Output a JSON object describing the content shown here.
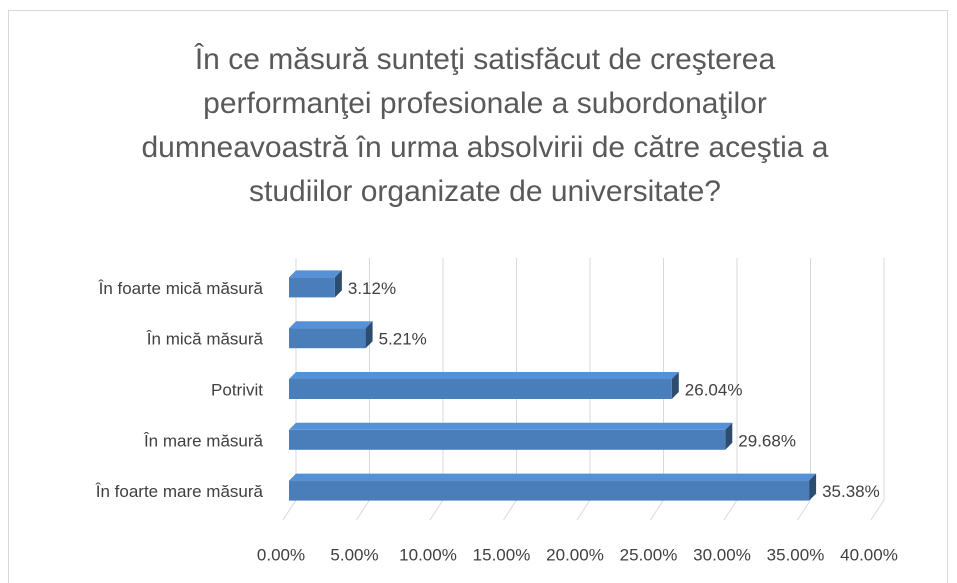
{
  "chart_data": {
    "type": "bar",
    "orientation": "horizontal",
    "title": "În ce măsură sunteţi satisfăcut de creşterea performanţei profesionale a subordonaţilor dumneavoastră în urma absolvirii de către aceştia a studiilor organizate de universitate?",
    "categories": [
      "În foarte mică măsură",
      "În mică măsură",
      "Potrivit",
      "În mare măsură",
      "În foarte mare măsură"
    ],
    "values": [
      3.12,
      5.21,
      26.04,
      29.68,
      35.38
    ],
    "value_labels": [
      "3.12%",
      "5.21%",
      "26.04%",
      "29.68%",
      "35.38%"
    ],
    "color": "#4a7ebb",
    "xlim": [
      0,
      40
    ],
    "xticks": [
      {
        "value": 0,
        "label": "0.00%"
      },
      {
        "value": 5,
        "label": "5.00%"
      },
      {
        "value": 10,
        "label": "10.00%"
      },
      {
        "value": 15,
        "label": "15.00%"
      },
      {
        "value": 20,
        "label": "20.00%"
      },
      {
        "value": 25,
        "label": "25.00%"
      },
      {
        "value": 30,
        "label": "30.00%"
      },
      {
        "value": 35,
        "label": "35.00%"
      },
      {
        "value": 40,
        "label": "40.00%"
      }
    ],
    "grid": true
  }
}
